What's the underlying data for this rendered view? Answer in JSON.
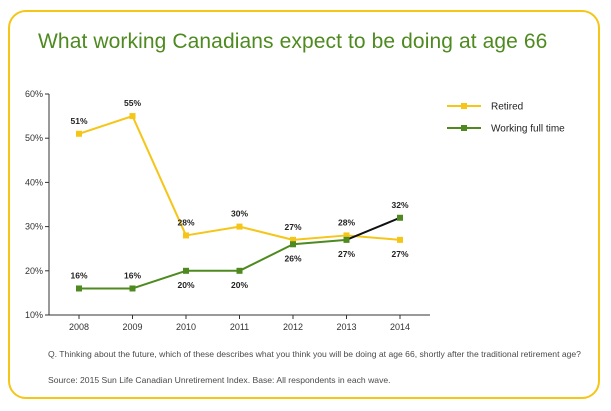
{
  "title": "What working Canadians expect to be doing at age 66",
  "footnotes": {
    "question": "Q. Thinking about the future, which  of these describes what you think you will be doing at age 66, shortly after the traditional retirement age?",
    "source": "Source: 2015 Sun Life Canadian Unretirement Index. Base: All respondents in each wave."
  },
  "colors": {
    "border": "#f5c518",
    "title": "#4e8a1f",
    "retired": "#f5c518",
    "working": "#4e8a1f",
    "segment_2013_2014": "#111111"
  },
  "chart_data": {
    "type": "line",
    "title": "What working Canadians expect to be doing at age 66",
    "xlabel": "",
    "ylabel": "",
    "categories": [
      "2008",
      "2009",
      "2010",
      "2011",
      "2012",
      "2013",
      "2014"
    ],
    "y_ticks": [
      "60%",
      "50%",
      "40%",
      "30%",
      "20%",
      "10%"
    ],
    "ylim": [
      10,
      60
    ],
    "legend_position": "top-right",
    "grid": false,
    "series": [
      {
        "name": "Retired",
        "color": "#f5c518",
        "values": [
          51,
          55,
          28,
          30,
          27,
          28,
          27
        ],
        "labels": [
          "51%",
          "55%",
          "28%",
          "30%",
          "27%",
          "28%",
          "27%"
        ],
        "label_positions": [
          "above",
          "above",
          "above",
          "above",
          "above",
          "above",
          "below"
        ]
      },
      {
        "name": "Working full time",
        "color": "#4e8a1f",
        "values": [
          16,
          16,
          20,
          20,
          26,
          27,
          32
        ],
        "labels": [
          "16%",
          "16%",
          "20%",
          "20%",
          "26%",
          "27%",
          "32%"
        ],
        "label_positions": [
          "above",
          "above",
          "below",
          "below",
          "below",
          "below",
          "above"
        ]
      }
    ]
  }
}
